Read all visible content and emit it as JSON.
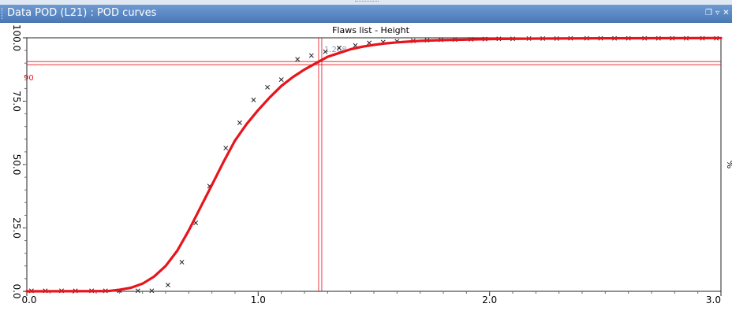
{
  "window": {
    "title": "Data POD (L21) : POD curves"
  },
  "chart_data": {
    "type": "line",
    "title": "Flaws list - Height",
    "xlim": [
      0.0,
      3.0
    ],
    "ylim": [
      0.0,
      100.0
    ],
    "x_ticks": [
      "0.0",
      "1.0",
      "2.0",
      "3.0"
    ],
    "y_ticks": [
      "0.0",
      "25.0",
      "50.0",
      "75.0",
      "100.0"
    ],
    "y_unit": "%",
    "threshold": {
      "y": 90,
      "y_label": "90",
      "x": 1.268,
      "x_label": "1.268"
    },
    "series": [
      {
        "style": "markers",
        "marker": "x",
        "color": "#222222",
        "points": [
          [
            0.02,
            0.2
          ],
          [
            0.08,
            0.2
          ],
          [
            0.15,
            0.2
          ],
          [
            0.21,
            0.2
          ],
          [
            0.28,
            0.2
          ],
          [
            0.34,
            0.2
          ],
          [
            0.4,
            0.2
          ],
          [
            0.48,
            0.2
          ],
          [
            0.54,
            0.2
          ],
          [
            0.61,
            2.5
          ],
          [
            0.67,
            11.5
          ],
          [
            0.73,
            27.0
          ],
          [
            0.79,
            41.5
          ],
          [
            0.86,
            56.5
          ],
          [
            0.92,
            66.5
          ],
          [
            0.98,
            75.5
          ],
          [
            1.04,
            80.5
          ],
          [
            1.1,
            83.5
          ],
          [
            1.17,
            91.5
          ],
          [
            1.23,
            93.0
          ],
          [
            1.29,
            94.5
          ],
          [
            1.35,
            96.0
          ],
          [
            1.42,
            97.0
          ],
          [
            1.48,
            98.0
          ],
          [
            1.54,
            98.3
          ],
          [
            1.6,
            98.6
          ],
          [
            1.67,
            98.8
          ],
          [
            1.73,
            99.0
          ],
          [
            1.79,
            99.2
          ],
          [
            1.85,
            99.3
          ],
          [
            1.92,
            99.4
          ],
          [
            1.98,
            99.5
          ],
          [
            2.04,
            99.6
          ],
          [
            2.1,
            99.6
          ],
          [
            2.17,
            99.7
          ],
          [
            2.23,
            99.7
          ],
          [
            2.29,
            99.7
          ],
          [
            2.35,
            99.8
          ],
          [
            2.42,
            99.8
          ],
          [
            2.48,
            99.8
          ],
          [
            2.54,
            99.8
          ],
          [
            2.6,
            99.8
          ],
          [
            2.67,
            99.8
          ],
          [
            2.73,
            99.8
          ],
          [
            2.79,
            99.8
          ],
          [
            2.85,
            99.8
          ],
          [
            2.92,
            99.8
          ],
          [
            2.98,
            99.8
          ]
        ]
      },
      {
        "style": "line",
        "color": "#e8141c",
        "points": [
          [
            0.0,
            0.0
          ],
          [
            0.35,
            0.1
          ],
          [
            0.4,
            0.6
          ],
          [
            0.45,
            1.4
          ],
          [
            0.5,
            3.0
          ],
          [
            0.55,
            5.8
          ],
          [
            0.6,
            10.0
          ],
          [
            0.65,
            16.0
          ],
          [
            0.7,
            24.0
          ],
          [
            0.75,
            33.0
          ],
          [
            0.8,
            42.0
          ],
          [
            0.85,
            51.0
          ],
          [
            0.9,
            59.5
          ],
          [
            0.95,
            66.0
          ],
          [
            1.0,
            71.5
          ],
          [
            1.05,
            76.5
          ],
          [
            1.1,
            81.0
          ],
          [
            1.15,
            84.5
          ],
          [
            1.2,
            87.5
          ],
          [
            1.25,
            90.0
          ],
          [
            1.3,
            92.5
          ],
          [
            1.35,
            94.0
          ],
          [
            1.4,
            95.5
          ],
          [
            1.45,
            96.5
          ],
          [
            1.5,
            97.2
          ],
          [
            1.55,
            97.8
          ],
          [
            1.6,
            98.2
          ],
          [
            1.7,
            98.8
          ],
          [
            1.8,
            99.1
          ],
          [
            1.9,
            99.3
          ],
          [
            2.0,
            99.5
          ],
          [
            2.2,
            99.7
          ],
          [
            2.5,
            99.8
          ],
          [
            3.0,
            99.9
          ]
        ]
      }
    ],
    "grid": false,
    "legend": "none"
  }
}
